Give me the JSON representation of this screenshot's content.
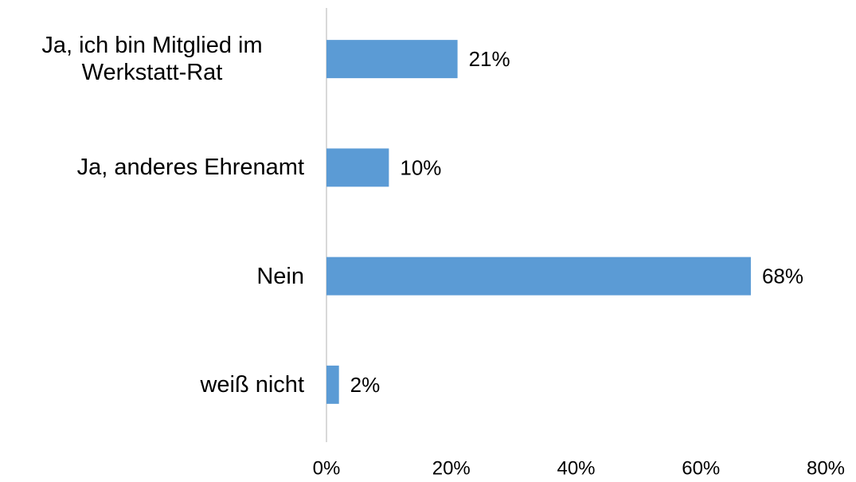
{
  "chart_data": {
    "type": "bar",
    "orientation": "horizontal",
    "categories": [
      "Ja, ich bin Mitglied im Werkstatt-Rat",
      "Ja, anderes Ehrenamt",
      "Nein",
      "weiß nicht"
    ],
    "values": [
      21,
      10,
      68,
      2
    ],
    "value_labels": [
      "21%",
      "10%",
      "68%",
      "2%"
    ],
    "color": "#5b9bd5",
    "xlim": [
      0,
      80
    ],
    "xticks": [
      {
        "value": 0,
        "label": "0%"
      },
      {
        "value": 20,
        "label": "20%"
      },
      {
        "value": 40,
        "label": "40%"
      },
      {
        "value": 60,
        "label": "60%"
      },
      {
        "value": 80,
        "label": "80%"
      }
    ],
    "grid": false
  }
}
